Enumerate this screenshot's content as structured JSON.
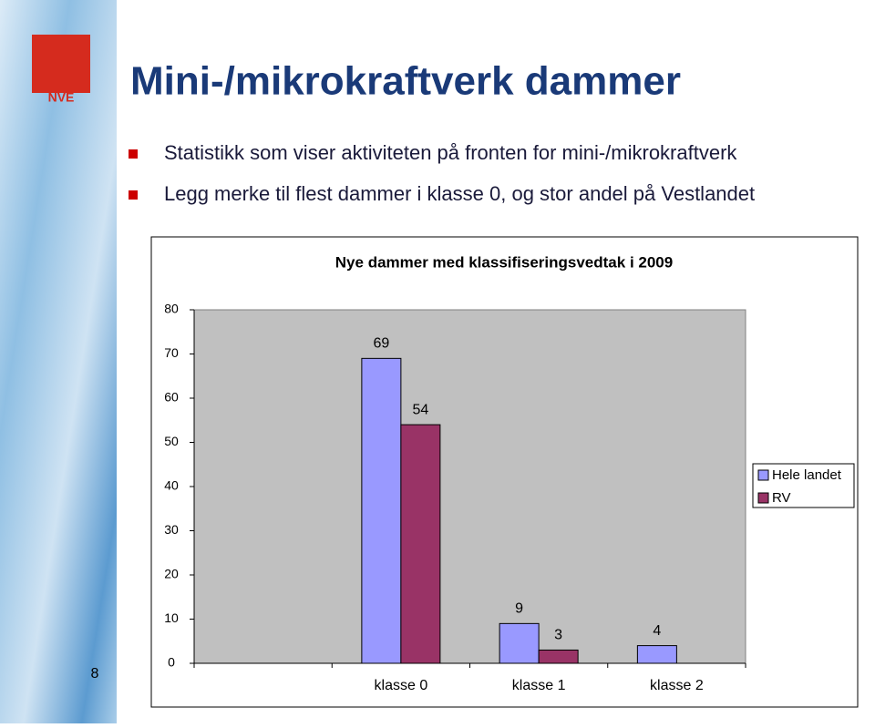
{
  "slide": {
    "title": "Mini-/mikrokraftverk dammer",
    "logo_text": "NVE",
    "bullets": [
      "Statistikk som viser aktiviteten på fronten for mini-/mikrokraftverk",
      "Legg merke til flest dammer i klasse 0, og stor andel på Vestlandet"
    ],
    "page_number": "8"
  },
  "chart_data": {
    "type": "bar",
    "title": "Nye dammer med klassifiseringsvedtak i 2009",
    "categories": [
      null,
      "klasse 0",
      "klasse 1",
      "klasse 2"
    ],
    "series": [
      {
        "name": "Hele landet",
        "color": "#9999ff",
        "values": [
          null,
          69,
          9,
          4
        ]
      },
      {
        "name": "RV",
        "color": "#993366",
        "values": [
          null,
          54,
          3,
          null
        ]
      }
    ],
    "ylim": [
      0,
      80
    ],
    "yticks": [
      0,
      10,
      20,
      30,
      40,
      50,
      60,
      70,
      80
    ],
    "grid": false,
    "legend": "right",
    "plot_background": "#c0c0c0"
  }
}
